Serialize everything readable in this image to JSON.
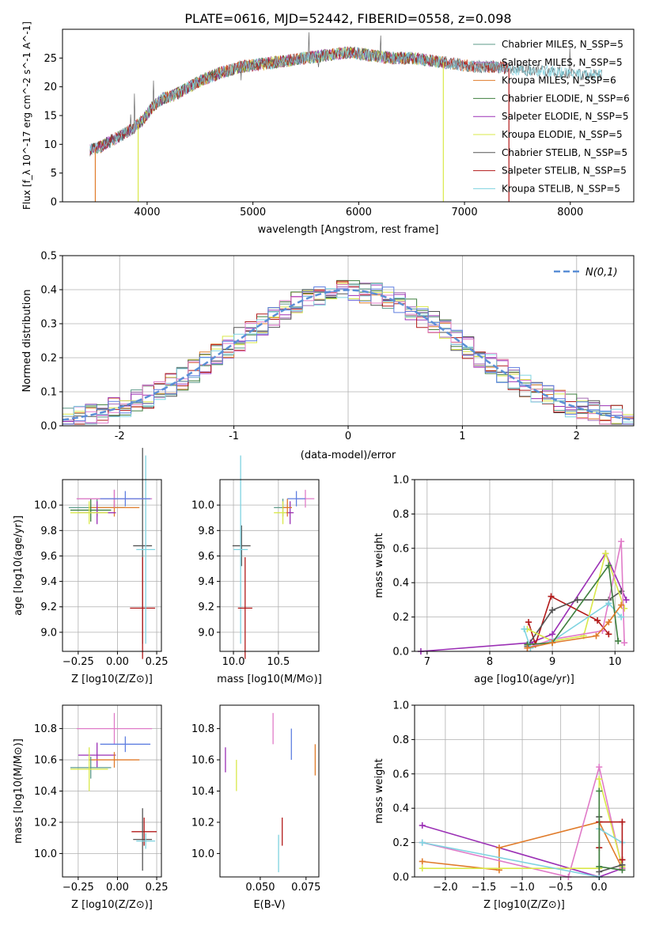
{
  "title": "PLATE=0616, MJD=52442, FIBERID=0558, z=0.098",
  "colors": {
    "Chabrier MILES": "#5e9b8a",
    "Salpeter MILES": "#a56ab5",
    "Kroupa MILES": "#e07b2a",
    "Chabrier ELODIE": "#3f7f3f",
    "Salpeter ELODIE": "#9b30b5",
    "Kroupa ELODIE": "#d9e84a",
    "Chabrier STELIB": "#555555",
    "Salpeter STELIB": "#b21a1a",
    "Kroupa STELIB": "#7fd3e0",
    "extra_pink": "#e07bc8",
    "extra_blue": "#5f7fe0",
    "normal_curve": "#5b8fd6"
  },
  "chart_data": [
    {
      "type": "line",
      "id": "spectrum",
      "xlabel": "wavelength [Angstrom, rest frame]",
      "ylabel": "Flux [f_λ 10^-17 erg cm^-2 s^-1 A^-1]",
      "xlim": [
        3200,
        8600
      ],
      "ylim": [
        0,
        30
      ],
      "xticks": [
        4000,
        5000,
        6000,
        7000,
        8000
      ],
      "yticks": [
        0,
        5,
        10,
        15,
        20,
        25
      ],
      "grid": false,
      "legend_position": "top-right",
      "legend": [
        "Chabrier MILES, N_SSP=5",
        "Salpeter MILES, N_SSP=5",
        "Kroupa MILES, N_SSP=6",
        "Chabrier ELODIE, N_SSP=6",
        "Salpeter ELODIE, N_SSP=5",
        "Kroupa ELODIE, N_SSP=5",
        "Chabrier STELIB, N_SSP=5",
        "Salpeter STELIB, N_SSP=5",
        "Kroupa STELIB, N_SSP=5"
      ],
      "continuum": {
        "x": [
          3460,
          3550,
          3650,
          3750,
          3850,
          3950,
          4050,
          4150,
          4250,
          4350,
          4500,
          4700,
          4900,
          5100,
          5300,
          5500,
          5700,
          5900,
          6100,
          6300,
          6500,
          6700,
          6900,
          7100,
          7300,
          7500,
          7700,
          7900,
          8100,
          8300
        ],
        "y": [
          9.0,
          9.5,
          10.5,
          11.5,
          12.5,
          14.0,
          16.5,
          18.0,
          18.5,
          19.5,
          21.0,
          22.5,
          23.5,
          24.0,
          24.5,
          25.0,
          25.5,
          26.0,
          25.5,
          25.0,
          25.0,
          24.5,
          24.0,
          23.5,
          23.5,
          23.0,
          22.8,
          22.5,
          22.2,
          22.0
        ]
      },
      "dropouts": [
        {
          "x": 3510,
          "model": "Kroupa MILES"
        },
        {
          "x": 3915,
          "model": "Kroupa ELODIE"
        },
        {
          "x": 6800,
          "model": "Kroupa ELODIE"
        },
        {
          "x": 7420,
          "model": "Salpeter STELIB"
        }
      ]
    },
    {
      "type": "step",
      "id": "residuals",
      "xlabel": "(data-model)/error",
      "ylabel": "Normed distribution",
      "xlim": [
        -2.5,
        2.5
      ],
      "ylim": [
        0,
        0.5
      ],
      "xticks": [
        -2,
        -1,
        0,
        1,
        2
      ],
      "yticks": [
        0.0,
        0.1,
        0.2,
        0.3,
        0.4,
        0.5
      ],
      "grid": true,
      "legend_position": "top-right",
      "legend": [
        "N(0,1)"
      ],
      "bin_width": 0.1
    },
    {
      "type": "errorbar",
      "id": "age_vs_Z",
      "xlabel": "Z [log10(Z/Z⊙)]",
      "ylabel": "age [log10(age/yr)]",
      "xlim": [
        -0.35,
        0.28
      ],
      "ylim": [
        8.85,
        10.2
      ],
      "xticks": [
        -0.25,
        0.0,
        0.25
      ],
      "yticks": [
        9.0,
        9.2,
        9.4,
        9.6,
        9.8,
        10.0
      ],
      "grid": true,
      "points": [
        {
          "model": "Chabrier MILES",
          "x": -0.13,
          "y": 9.98,
          "xerr": 0.18,
          "yerr": 0.07
        },
        {
          "model": "Salpeter MILES",
          "x": -0.02,
          "y": 10.05,
          "xerr": 0.24,
          "yerr": 0.07
        },
        {
          "model": "Kroupa MILES",
          "x": -0.02,
          "y": 9.98,
          "xerr": 0.16,
          "yerr": 0.07
        },
        {
          "model": "Chabrier ELODIE",
          "x": -0.17,
          "y": 9.96,
          "xerr": 0.13,
          "yerr": 0.09
        },
        {
          "model": "Salpeter ELODIE",
          "x": -0.13,
          "y": 9.94,
          "xerr": 0.12,
          "yerr": 0.09
        },
        {
          "model": "Kroupa ELODIE",
          "x": -0.18,
          "y": 9.94,
          "xerr": 0.12,
          "yerr": 0.09
        },
        {
          "model": "Chabrier STELIB",
          "x": 0.16,
          "y": 9.68,
          "xerr": 0.06,
          "yerr": 0.77
        },
        {
          "model": "Salpeter STELIB",
          "x": 0.16,
          "y": 9.19,
          "xerr": 0.08,
          "yerr": 0.4
        },
        {
          "model": "Kroupa STELIB",
          "x": 0.18,
          "y": 9.65,
          "xerr": 0.06,
          "yerr": 0.74
        },
        {
          "model": "extra_pink",
          "x": -0.02,
          "y": 10.05,
          "xerr": 0.24,
          "yerr": 0.07
        },
        {
          "model": "extra_blue",
          "x": 0.05,
          "y": 10.05,
          "xerr": 0.16,
          "yerr": 0.06
        }
      ]
    },
    {
      "type": "errorbar",
      "id": "age_vs_mass",
      "xlabel": "mass [log10(M/M⊙)]",
      "ylabel": "",
      "xlim": [
        9.85,
        10.95
      ],
      "ylim": [
        8.85,
        10.2
      ],
      "xticks": [
        10.0,
        10.5
      ],
      "yticks": [
        9.0,
        9.2,
        9.4,
        9.6,
        9.8,
        10.0
      ],
      "grid": true,
      "points": [
        {
          "model": "Chabrier STELIB",
          "x": 10.09,
          "y": 9.68,
          "xerr": 0.1,
          "yerr": 0.16
        },
        {
          "model": "Kroupa STELIB",
          "x": 10.08,
          "y": 9.65,
          "xerr": 0.08,
          "yerr": 0.74
        },
        {
          "model": "Salpeter STELIB",
          "x": 10.13,
          "y": 9.19,
          "xerr": 0.08,
          "yerr": 0.4
        },
        {
          "model": "Chabrier MILES",
          "x": 10.55,
          "y": 9.98,
          "xerr": 0.1,
          "yerr": 0.07
        },
        {
          "model": "Kroupa ELODIE",
          "x": 10.55,
          "y": 9.94,
          "xerr": 0.1,
          "yerr": 0.09
        },
        {
          "model": "Salpeter ELODIE",
          "x": 10.63,
          "y": 9.94,
          "xerr": 0.04,
          "yerr": 0.09
        },
        {
          "model": "Kroupa MILES",
          "x": 10.6,
          "y": 9.98,
          "xerr": 0.05,
          "yerr": 0.07
        },
        {
          "model": "extra_pink",
          "x": 10.8,
          "y": 10.05,
          "xerr": 0.1,
          "yerr": 0.07
        },
        {
          "model": "extra_blue",
          "x": 10.7,
          "y": 10.05,
          "xerr": 0.1,
          "yerr": 0.06
        }
      ]
    },
    {
      "type": "line",
      "id": "mass_weight_vs_age",
      "xlabel": "age [log10(age/yr)]",
      "ylabel": "mass weight",
      "xlim": [
        6.8,
        10.3
      ],
      "ylim": [
        0,
        1.0
      ],
      "xticks": [
        7,
        8,
        9,
        10
      ],
      "yticks": [
        0.0,
        0.2,
        0.4,
        0.6,
        0.8,
        1.0
      ],
      "grid": true,
      "series": [
        {
          "model": "Salpeter ELODIE",
          "x": [
            6.9,
            8.65,
            9.0,
            9.85,
            10.18
          ],
          "y": [
            0.0,
            0.05,
            0.1,
            0.57,
            0.3
          ]
        },
        {
          "model": "Salpeter STELIB",
          "x": [
            8.62,
            8.73,
            8.98,
            9.72,
            9.9
          ],
          "y": [
            0.17,
            0.04,
            0.32,
            0.18,
            0.1
          ]
        },
        {
          "model": "Chabrier STELIB",
          "x": [
            8.6,
            9.0,
            9.4,
            9.9,
            10.1
          ],
          "y": [
            0.03,
            0.24,
            0.3,
            0.3,
            0.35
          ]
        },
        {
          "model": "Kroupa ELODIE",
          "x": [
            8.6,
            9.0,
            9.5,
            9.85,
            10.15
          ],
          "y": [
            0.13,
            0.06,
            0.09,
            0.57,
            0.25
          ]
        },
        {
          "model": "extra_pink",
          "x": [
            8.6,
            9.0,
            9.8,
            10.1,
            10.15
          ],
          "y": [
            0.02,
            0.07,
            0.12,
            0.64,
            0.05
          ]
        },
        {
          "model": "Kroupa STELIB",
          "x": [
            8.55,
            8.65,
            9.0,
            9.9,
            10.1
          ],
          "y": [
            0.13,
            0.02,
            0.06,
            0.28,
            0.2
          ]
        },
        {
          "model": "Chabrier ELODIE",
          "x": [
            8.6,
            9.0,
            9.9,
            10.05
          ],
          "y": [
            0.04,
            0.05,
            0.5,
            0.06
          ]
        },
        {
          "model": "Kroupa MILES",
          "x": [
            8.6,
            9.0,
            9.7,
            9.9,
            10.1
          ],
          "y": [
            0.02,
            0.05,
            0.09,
            0.17,
            0.27
          ]
        }
      ]
    },
    {
      "type": "errorbar",
      "id": "mass_vs_Z",
      "xlabel": "Z [log10(Z/Z⊙)]",
      "ylabel": "mass [log10(M/M⊙)]",
      "xlim": [
        -0.35,
        0.28
      ],
      "ylim": [
        9.85,
        10.95
      ],
      "xticks": [
        -0.25,
        0.0,
        0.25
      ],
      "yticks": [
        10.0,
        10.2,
        10.4,
        10.6,
        10.8
      ],
      "grid": true,
      "points": [
        {
          "model": "extra_pink",
          "x": -0.02,
          "y": 10.8,
          "xerr": 0.24,
          "yerr": 0.1
        },
        {
          "model": "extra_blue",
          "x": 0.05,
          "y": 10.7,
          "xerr": 0.16,
          "yerr": 0.05
        },
        {
          "model": "Salpeter ELODIE",
          "x": -0.13,
          "y": 10.63,
          "xerr": 0.12,
          "yerr": 0.08
        },
        {
          "model": "Kroupa MILES",
          "x": -0.02,
          "y": 10.6,
          "xerr": 0.16,
          "yerr": 0.05
        },
        {
          "model": "Chabrier MILES",
          "x": -0.17,
          "y": 10.55,
          "xerr": 0.13,
          "yerr": 0.07
        },
        {
          "model": "Kroupa ELODIE",
          "x": -0.18,
          "y": 10.54,
          "xerr": 0.12,
          "yerr": 0.14
        },
        {
          "model": "Salpeter STELIB",
          "x": 0.17,
          "y": 10.14,
          "xerr": 0.08,
          "yerr": 0.09
        },
        {
          "model": "Chabrier STELIB",
          "x": 0.16,
          "y": 10.09,
          "xerr": 0.06,
          "yerr": 0.2
        },
        {
          "model": "Kroupa STELIB",
          "x": 0.18,
          "y": 10.08,
          "xerr": 0.06,
          "yerr": 0.05
        }
      ]
    },
    {
      "type": "errorbar",
      "id": "mass_vs_EBV",
      "xlabel": "E(B-V)",
      "ylabel": "",
      "xlim": [
        0.028,
        0.082
      ],
      "ylim": [
        9.85,
        10.95
      ],
      "xticks": [
        0.05,
        0.075
      ],
      "yticks": [
        10.0,
        10.2,
        10.4,
        10.6,
        10.8
      ],
      "grid": false,
      "points": [
        {
          "model": "Salpeter ELODIE",
          "x": 0.031,
          "y": 10.6,
          "xerr": 0,
          "yerr": 0.08
        },
        {
          "model": "Kroupa ELODIE",
          "x": 0.037,
          "y": 10.5,
          "xerr": 0,
          "yerr": 0.1
        },
        {
          "model": "extra_pink",
          "x": 0.057,
          "y": 10.8,
          "xerr": 0,
          "yerr": 0.1
        },
        {
          "model": "Kroupa STELIB",
          "x": 0.06,
          "y": 10.0,
          "xerr": 0,
          "yerr": 0.12
        },
        {
          "model": "Salpeter STELIB",
          "x": 0.062,
          "y": 10.14,
          "xerr": 0,
          "yerr": 0.09
        },
        {
          "model": "extra_blue",
          "x": 0.067,
          "y": 10.7,
          "xerr": 0,
          "yerr": 0.1
        },
        {
          "model": "Kroupa MILES",
          "x": 0.08,
          "y": 10.6,
          "xerr": 0,
          "yerr": 0.1
        }
      ]
    },
    {
      "type": "line",
      "id": "mass_weight_vs_Z",
      "xlabel": "Z [log10(Z/Z⊙)]",
      "ylabel": "mass weight",
      "xlim": [
        -2.4,
        0.45
      ],
      "ylim": [
        0,
        1.0
      ],
      "xticks": [
        -2.0,
        -1.5,
        -1.0,
        -0.5,
        0.0
      ],
      "yticks": [
        0.0,
        0.2,
        0.4,
        0.6,
        0.8,
        1.0
      ],
      "grid": true,
      "series": [
        {
          "model": "Salpeter ELODIE",
          "x": [
            -2.3,
            0.0,
            0.3,
            0.3
          ],
          "y": [
            0.3,
            0.0,
            0.05,
            0.1
          ]
        },
        {
          "model": "Kroupa MILES",
          "x": [
            -2.3,
            -1.3,
            -1.3,
            0.0,
            0.3
          ],
          "y": [
            0.09,
            0.04,
            0.17,
            0.32,
            0.05
          ]
        },
        {
          "model": "extra_pink",
          "x": [
            -2.3,
            -0.4,
            0.0,
            0.3
          ],
          "y": [
            0.2,
            0.0,
            0.64,
            0.05
          ]
        },
        {
          "model": "Kroupa ELODIE",
          "x": [
            -2.3,
            0.0,
            0.0,
            0.3
          ],
          "y": [
            0.05,
            0.05,
            0.57,
            0.06
          ]
        },
        {
          "model": "Kroupa STELIB",
          "x": [
            -2.3,
            0.0,
            0.0,
            0.3
          ],
          "y": [
            0.2,
            0.0,
            0.28,
            0.2
          ]
        },
        {
          "model": "Chabrier STELIB",
          "x": [
            0.0,
            0.0,
            0.3
          ],
          "y": [
            0.35,
            0.03,
            0.07
          ]
        },
        {
          "model": "Salpeter STELIB",
          "x": [
            0.0,
            0.0,
            0.3,
            0.3
          ],
          "y": [
            0.17,
            0.32,
            0.32,
            0.1
          ]
        },
        {
          "model": "Chabrier ELODIE",
          "x": [
            0.0,
            0.0,
            0.3
          ],
          "y": [
            0.5,
            0.06,
            0.04
          ]
        }
      ]
    }
  ]
}
